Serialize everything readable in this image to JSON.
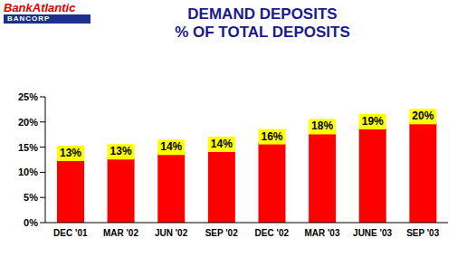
{
  "chart_data": {
    "type": "bar",
    "title": "DEMAND DEPOSITS",
    "subtitle": "% OF TOTAL DEPOSITS",
    "annotations": [
      "BankAtlantic",
      "BANCORP"
    ],
    "categories": [
      "DEC '01",
      "MAR '02",
      "JUN '02",
      "SEP '02",
      "DEC '02",
      "MAR '03",
      "JUNE '03",
      "SEP '03"
    ],
    "values": [
      12.6,
      12.9,
      13.8,
      14.4,
      15.9,
      17.9,
      18.9,
      19.9
    ],
    "value_labels": [
      "13%",
      "13%",
      "14%",
      "14%",
      "16%",
      "18%",
      "19%",
      "20%"
    ],
    "color": "#ff0000",
    "ylim": [
      0,
      25
    ],
    "yticks": [
      {
        "value": 0,
        "label": "0%"
      },
      {
        "value": 5,
        "label": "5%"
      },
      {
        "value": 10,
        "label": "10%"
      },
      {
        "value": 15,
        "label": "15%"
      },
      {
        "value": 20,
        "label": "20%"
      },
      {
        "value": 25,
        "label": "25%"
      }
    ],
    "grid": false,
    "data_labels": true
  }
}
